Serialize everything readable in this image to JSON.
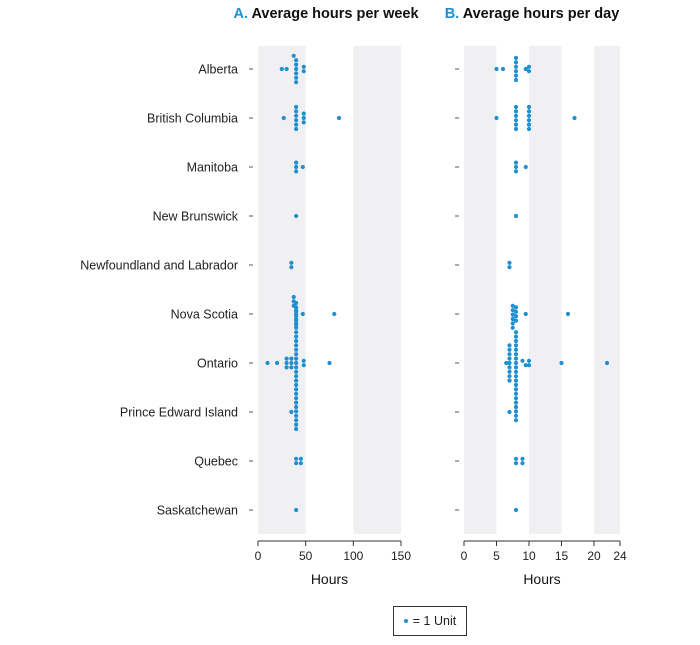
{
  "colors": {
    "dot": "#1f8fd0",
    "band": "#f0f0f2",
    "letter": "#1f8fd0"
  },
  "legend": {
    "label": "= 1 Unit"
  },
  "chart_data": [
    {
      "type": "dot-strip",
      "letter": "A.",
      "title": "Average hours per week",
      "xlabel": "Hours",
      "xlim": [
        0,
        150
      ],
      "xticks": [
        0,
        50,
        100,
        150
      ],
      "bands": [
        [
          0,
          50
        ],
        [
          100,
          150
        ]
      ],
      "categories": [
        "Alberta",
        "British Columbia",
        "Manitoba",
        "New Brunswick",
        "Newfoundland and Labrador",
        "Nova Scotia",
        "Ontario",
        "Prince Edward Island",
        "Quebec",
        "Saskatchewan"
      ],
      "values": [
        [
          25,
          30,
          37.5,
          40,
          40,
          40,
          40,
          40,
          40,
          48,
          48
        ],
        [
          27,
          40,
          40,
          40,
          40,
          40,
          40,
          48,
          48,
          48,
          85
        ],
        [
          40,
          40,
          40,
          47
        ],
        [
          40
        ],
        [
          35,
          35
        ],
        [
          40,
          40,
          40,
          40,
          40,
          40,
          47,
          80
        ],
        [
          10,
          20,
          30,
          30,
          30,
          35,
          35,
          35,
          37.5,
          37.5,
          37.5,
          40,
          40,
          40,
          40,
          40,
          40,
          40,
          40,
          40,
          40,
          40,
          40,
          40,
          40,
          40,
          40,
          40,
          40,
          40,
          40,
          40,
          40,
          40,
          40,
          40,
          40,
          40,
          40,
          48,
          48,
          75
        ],
        [
          35
        ],
        [
          40,
          40,
          45,
          45
        ],
        [
          40
        ]
      ]
    },
    {
      "type": "dot-strip",
      "letter": "B.",
      "title": "Average hours per day",
      "xlabel": "Hours",
      "xlim": [
        0,
        24
      ],
      "xticks": [
        0,
        5,
        10,
        15,
        20,
        24
      ],
      "bands": [
        [
          0,
          5
        ],
        [
          10,
          15
        ],
        [
          20,
          24
        ]
      ],
      "categories": [
        "Alberta",
        "British Columbia",
        "Manitoba",
        "New Brunswick",
        "Newfoundland and Labrador",
        "Nova Scotia",
        "Ontario",
        "Prince Edward Island",
        "Quebec",
        "Saskatchewan"
      ],
      "values": [
        [
          5,
          6,
          8,
          8,
          8,
          8,
          8,
          8,
          9.5,
          10,
          10
        ],
        [
          5,
          8,
          8,
          8,
          8,
          8,
          8,
          10,
          10,
          10,
          10,
          10,
          10,
          17
        ],
        [
          8,
          8,
          8,
          9.5
        ],
        [
          8
        ],
        [
          7,
          7
        ],
        [
          8,
          8,
          8,
          8,
          9.5,
          16
        ],
        [
          6.5,
          7,
          7,
          7,
          7,
          7,
          7,
          7,
          7,
          7,
          7.5,
          7.5,
          7.5,
          7.5,
          7.5,
          7.5,
          8,
          8,
          8,
          8,
          8,
          8,
          8,
          8,
          8,
          8,
          8,
          8,
          8,
          8,
          8,
          8,
          8,
          8,
          8,
          8,
          8,
          9,
          9.5,
          10,
          10,
          15,
          22
        ],
        [
          7
        ],
        [
          8,
          8,
          9,
          9
        ],
        [
          8
        ]
      ]
    }
  ]
}
